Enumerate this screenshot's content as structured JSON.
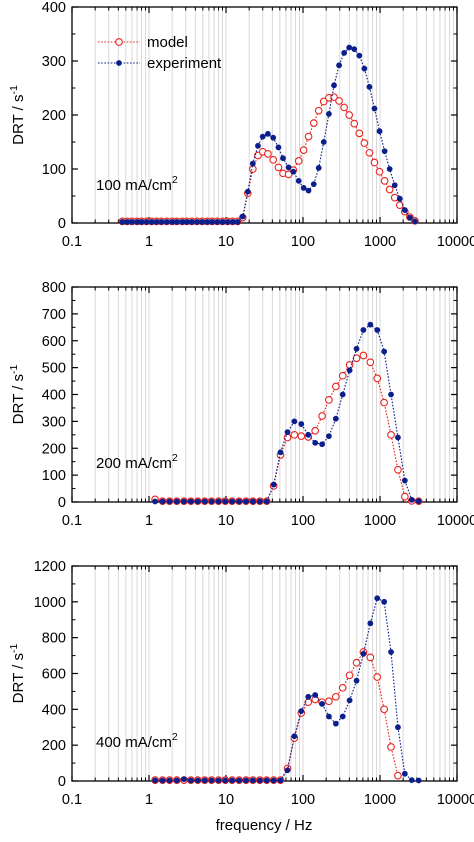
{
  "colors": {
    "model": "#e8231f",
    "experiment": "#0b1f8c",
    "grid": "#d9d9d9",
    "axis": "#000000"
  },
  "legend": {
    "model": "model",
    "experiment": "experiment",
    "placement": "top-left"
  },
  "xlabel": "frequency / Hz",
  "chart_data": [
    {
      "type": "line",
      "label_main": "100 mA/cm",
      "label_sup": "2",
      "ylabel_main": "DRT / s",
      "ylabel_sup": "-1",
      "xscale": "log",
      "xlim": [
        0.1,
        10000
      ],
      "ylim": [
        0,
        400
      ],
      "xticks": [
        0.1,
        1,
        10,
        100,
        1000,
        10000
      ],
      "xtick_labels": [
        "0.1",
        "1",
        "10",
        "100",
        "1000",
        "10000"
      ],
      "yticks": [
        0,
        100,
        200,
        300,
        400
      ],
      "ytick_labels": [
        "0",
        "100",
        "200",
        "300",
        "400"
      ],
      "grid": "vertical",
      "legend": true,
      "series": [
        {
          "key": "model",
          "name": "model",
          "marker": "open-circle",
          "x": [
            0.45,
            0.52,
            0.6,
            0.7,
            0.8,
            0.93,
            1.08,
            1.25,
            1.45,
            1.7,
            2.0,
            2.3,
            2.7,
            3.1,
            3.6,
            4.2,
            4.9,
            5.7,
            6.6,
            7.7,
            9.0,
            10.5,
            12.2,
            14.2,
            16.5,
            19.2,
            22.3,
            26,
            30,
            35,
            41,
            48,
            55,
            65,
            75,
            88,
            102,
            118,
            138,
            160,
            186,
            217,
            253,
            294,
            342,
            398,
            463,
            539,
            627,
            729,
            848,
            987,
            1148,
            1335,
            1554,
            1807,
            2102,
            2445,
            2844
          ],
          "y": [
            3,
            3,
            3,
            3,
            3,
            3,
            3,
            3,
            3,
            3,
            3,
            3,
            3,
            3,
            3,
            3,
            3,
            3,
            3,
            3,
            3,
            3,
            3,
            3,
            10,
            55,
            100,
            125,
            132,
            128,
            117,
            103,
            92,
            90,
            98,
            115,
            135,
            160,
            185,
            208,
            225,
            232,
            233,
            226,
            214,
            200,
            184,
            166,
            148,
            130,
            112,
            95,
            78,
            62,
            47,
            33,
            21,
            11,
            4
          ]
        },
        {
          "key": "experiment",
          "name": "experiment",
          "marker": "filled-circle",
          "x": [
            0.45,
            0.52,
            0.6,
            0.7,
            0.8,
            0.93,
            1.08,
            1.25,
            1.45,
            1.7,
            2.0,
            2.3,
            2.7,
            3.1,
            3.6,
            4.2,
            4.9,
            5.7,
            6.6,
            7.7,
            9.0,
            10.5,
            12.2,
            14.2,
            16.5,
            19.2,
            22.3,
            26,
            30,
            35,
            41,
            48,
            55,
            65,
            75,
            88,
            102,
            118,
            138,
            160,
            186,
            217,
            253,
            294,
            342,
            398,
            463,
            539,
            627,
            729,
            848,
            987,
            1148,
            1335,
            1554,
            1807,
            2102,
            2445,
            2844
          ],
          "y": [
            2,
            2,
            2,
            2,
            2,
            2,
            2,
            2,
            2,
            2,
            2,
            2,
            2,
            2,
            2,
            2,
            2,
            2,
            2,
            2,
            2,
            2,
            2,
            2,
            12,
            58,
            110,
            143,
            160,
            165,
            158,
            140,
            120,
            103,
            95,
            78,
            65,
            60,
            72,
            102,
            150,
            202,
            255,
            292,
            315,
            325,
            322,
            310,
            286,
            252,
            212,
            170,
            133,
            100,
            70,
            45,
            24,
            10,
            3
          ]
        }
      ]
    },
    {
      "type": "line",
      "label_main": "200 mA/cm",
      "label_sup": "2",
      "ylabel_main": "DRT / s",
      "ylabel_sup": "-1",
      "xscale": "log",
      "xlim": [
        0.1,
        10000
      ],
      "ylim": [
        0,
        800
      ],
      "xticks": [
        0.1,
        1,
        10,
        100,
        1000,
        10000
      ],
      "xtick_labels": [
        "0.1",
        "1",
        "10",
        "100",
        "1000",
        "10000"
      ],
      "yticks": [
        0,
        100,
        200,
        300,
        400,
        500,
        600,
        700,
        800
      ],
      "ytick_labels": [
        "0",
        "100",
        "200",
        "300",
        "400",
        "500",
        "600",
        "700",
        "800"
      ],
      "grid": "vertical",
      "legend": false,
      "series": [
        {
          "key": "model",
          "name": "model",
          "marker": "open-circle",
          "x": [
            1.2,
            1.5,
            1.85,
            2.3,
            2.85,
            3.5,
            4.3,
            5.3,
            6.5,
            8.0,
            9.8,
            12,
            14.8,
            18.2,
            22.4,
            27.5,
            33.8,
            41.6,
            51,
            62.9,
            77.3,
            95,
            117,
            144,
            177,
            217,
            267,
            328,
            403,
            496,
            609,
            749,
            921,
            1132,
            1391,
            1710,
            2102,
            2584,
            3177
          ],
          "y": [
            10,
            3,
            3,
            3,
            3,
            3,
            3,
            3,
            3,
            3,
            3,
            3,
            3,
            3,
            3,
            3,
            3,
            60,
            175,
            240,
            250,
            245,
            242,
            265,
            320,
            380,
            430,
            470,
            510,
            535,
            545,
            520,
            460,
            370,
            250,
            120,
            20,
            4,
            3
          ]
        },
        {
          "key": "experiment",
          "name": "experiment",
          "marker": "filled-circle",
          "x": [
            1.2,
            1.5,
            1.85,
            2.3,
            2.85,
            3.5,
            4.3,
            5.3,
            6.5,
            8.0,
            9.8,
            12,
            14.8,
            18.2,
            22.4,
            27.5,
            33.8,
            41.6,
            51,
            62.9,
            77.3,
            95,
            117,
            144,
            177,
            217,
            267,
            328,
            403,
            496,
            609,
            749,
            921,
            1132,
            1391,
            1710,
            2102,
            2584,
            3177
          ],
          "y": [
            2,
            2,
            2,
            2,
            2,
            2,
            2,
            2,
            2,
            2,
            2,
            2,
            2,
            2,
            2,
            2,
            2,
            65,
            185,
            260,
            300,
            290,
            250,
            220,
            215,
            245,
            310,
            400,
            490,
            570,
            640,
            660,
            640,
            560,
            400,
            240,
            80,
            8,
            3
          ]
        }
      ]
    },
    {
      "type": "line",
      "label_main": "400 mA/cm",
      "label_sup": "2",
      "ylabel_main": "DRT / s",
      "ylabel_sup": "-1",
      "xscale": "log",
      "xlim": [
        0.1,
        10000
      ],
      "ylim": [
        0,
        1200
      ],
      "xticks": [
        0.1,
        1,
        10,
        100,
        1000,
        10000
      ],
      "xtick_labels": [
        "0.1",
        "1",
        "10",
        "100",
        "1000",
        "10000"
      ],
      "yticks": [
        0,
        200,
        400,
        600,
        800,
        1000,
        1200
      ],
      "ytick_labels": [
        "0",
        "200",
        "400",
        "600",
        "800",
        "1000",
        "1200"
      ],
      "grid": "vertical",
      "legend": false,
      "series": [
        {
          "key": "model",
          "name": "model",
          "marker": "open-circle",
          "x": [
            1.2,
            1.5,
            1.85,
            2.3,
            2.85,
            3.5,
            4.3,
            5.3,
            6.5,
            8.0,
            9.8,
            12,
            14.8,
            18.2,
            22.4,
            27.5,
            33.8,
            41.6,
            51,
            62.9,
            77.3,
            95,
            117,
            144,
            177,
            217,
            267,
            328,
            403,
            496,
            609,
            749,
            921,
            1132,
            1391,
            1710
          ],
          "y": [
            5,
            5,
            5,
            5,
            5,
            5,
            5,
            5,
            5,
            5,
            5,
            5,
            5,
            5,
            5,
            5,
            5,
            5,
            5,
            70,
            240,
            380,
            440,
            455,
            440,
            445,
            470,
            520,
            590,
            660,
            720,
            690,
            580,
            400,
            190,
            30
          ]
        },
        {
          "key": "experiment",
          "name": "experiment",
          "marker": "filled-circle",
          "x": [
            1.2,
            1.5,
            1.85,
            2.3,
            2.85,
            3.5,
            4.3,
            5.3,
            6.5,
            8.0,
            9.8,
            12,
            14.8,
            18.2,
            22.4,
            27.5,
            33.8,
            41.6,
            51,
            62.9,
            77.3,
            95,
            117,
            144,
            177,
            217,
            267,
            328,
            403,
            496,
            609,
            749,
            921,
            1132,
            1391,
            1710,
            2102,
            2584,
            3177
          ],
          "y": [
            3,
            3,
            3,
            3,
            10,
            3,
            3,
            3,
            3,
            3,
            3,
            3,
            3,
            3,
            3,
            3,
            3,
            3,
            3,
            60,
            250,
            390,
            470,
            480,
            430,
            360,
            320,
            360,
            450,
            560,
            710,
            880,
            1020,
            1000,
            720,
            300,
            40,
            5,
            3
          ]
        }
      ]
    }
  ]
}
